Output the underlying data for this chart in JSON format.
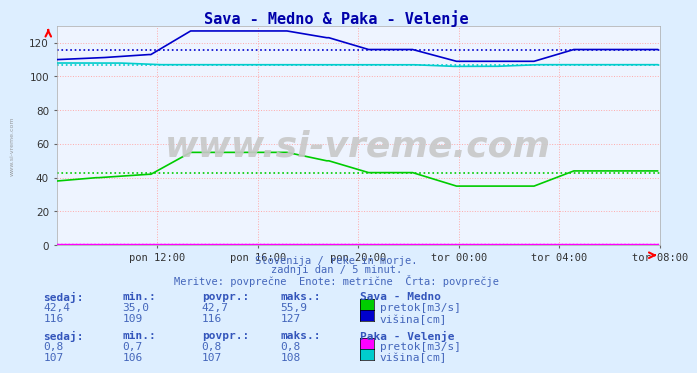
{
  "title": "Sava - Medno & Paka - Velenje",
  "bg_color": "#ddeeff",
  "plot_bg_color": "#eef4ff",
  "grid_color": "#ffaaaa",
  "xlabel_ticks": [
    "pon 12:00",
    "pon 16:00",
    "pon 20:00",
    "tor 00:00",
    "tor 04:00",
    "tor 08:00"
  ],
  "xlim": [
    0,
    288
  ],
  "ylim": [
    0,
    130
  ],
  "yticks": [
    0,
    20,
    40,
    60,
    80,
    100,
    120
  ],
  "subtitle1": "Slovenija / reke in morje.",
  "subtitle2": "zadnji dan / 5 minut.",
  "subtitle3": "Meritve: povprečne  Enote: metrične  Črta: povprečje",
  "watermark": "www.si-vreme.com",
  "sava_medno_label": "Sava - Medno",
  "paka_velenje_label": "Paka - Velenje",
  "table_headers": [
    "sedaj:",
    "min.:",
    "povpr.:",
    "maks.:"
  ],
  "sava_pretok_row": [
    "42,4",
    "35,0",
    "42,7",
    "55,9"
  ],
  "sava_visina_row": [
    "116",
    "109",
    "116",
    "127"
  ],
  "paka_pretok_row": [
    "0,8",
    "0,7",
    "0,8",
    "0,8"
  ],
  "paka_visina_row": [
    "107",
    "106",
    "107",
    "108"
  ],
  "sava_pretok_avg": 42.7,
  "sava_visina_avg": 116,
  "paka_pretok_avg": 0.8,
  "paka_visina_avg": 107,
  "color_sava_pretok": "#00cc00",
  "color_sava_visina": "#0000cc",
  "color_paka_pretok": "#ff00ff",
  "color_paka_visina": "#00cccc",
  "color_title": "#0000aa",
  "color_text": "#4466bb",
  "color_label_bold": "#3355bb"
}
